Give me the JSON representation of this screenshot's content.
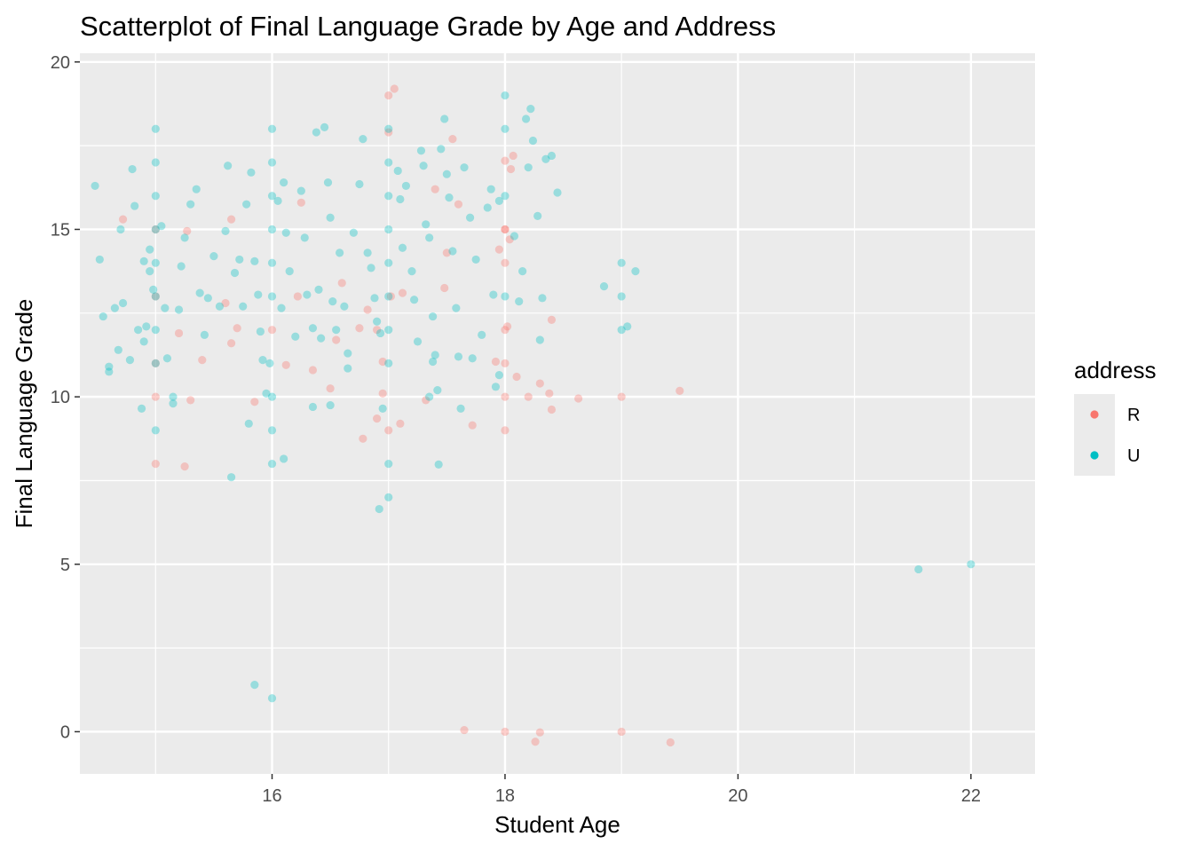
{
  "chart_data": {
    "type": "scatter",
    "title": "Scatterplot of Final Language Grade by Age and Address",
    "xlabel": "Student Age",
    "ylabel": "Final Language Grade",
    "xlim": [
      14.35,
      22.55
    ],
    "ylim": [
      -1.26,
      20.26
    ],
    "x_ticks": [
      16,
      18,
      20,
      22
    ],
    "y_ticks": [
      0,
      5,
      10,
      15,
      20
    ],
    "grid": true,
    "legend": {
      "title": "address",
      "placement": "right",
      "entries": [
        {
          "label": "R",
          "color": "#F8766D"
        },
        {
          "label": "U",
          "color": "#00BFC4"
        }
      ]
    },
    "series": [
      {
        "name": "R",
        "color": "#F8766D",
        "points": [
          [
            17,
            19
          ],
          [
            17.05,
            19.2
          ],
          [
            17,
            17.9
          ],
          [
            17.55,
            17.7
          ],
          [
            18,
            17.05
          ],
          [
            18.07,
            17.2
          ],
          [
            18.05,
            16.8
          ],
          [
            15,
            15
          ],
          [
            14.72,
            15.3
          ],
          [
            15.65,
            15.3
          ],
          [
            15.27,
            14.95
          ],
          [
            17.4,
            16.2
          ],
          [
            17.6,
            15.75
          ],
          [
            16.25,
            15.8
          ],
          [
            18,
            15
          ],
          [
            18.04,
            14.7
          ],
          [
            17.95,
            14.4
          ],
          [
            18,
            14
          ],
          [
            17.5,
            14.3
          ],
          [
            15,
            13
          ],
          [
            15.6,
            12.8
          ],
          [
            16.22,
            13
          ],
          [
            16.6,
            13.4
          ],
          [
            17.02,
            13
          ],
          [
            17.12,
            13.1
          ],
          [
            17.48,
            13.25
          ],
          [
            18.02,
            12.1
          ],
          [
            18.4,
            12.3
          ],
          [
            16,
            12
          ],
          [
            15.7,
            12.05
          ],
          [
            15.2,
            11.9
          ],
          [
            16.75,
            12.05
          ],
          [
            16.9,
            12
          ],
          [
            15,
            11
          ],
          [
            15.4,
            11.1
          ],
          [
            16.55,
            11.7
          ],
          [
            16.35,
            10.8
          ],
          [
            16.95,
            11.05
          ],
          [
            18,
            11
          ],
          [
            17.92,
            11.05
          ],
          [
            18.1,
            10.6
          ],
          [
            15,
            10
          ],
          [
            15.3,
            9.9
          ],
          [
            15.85,
            9.85
          ],
          [
            16.5,
            10.25
          ],
          [
            16.95,
            10.1
          ],
          [
            17.32,
            9.9
          ],
          [
            18,
            10
          ],
          [
            18.2,
            10
          ],
          [
            18.3,
            10.4
          ],
          [
            18.38,
            10.1
          ],
          [
            18.63,
            9.95
          ],
          [
            19,
            10
          ],
          [
            19.5,
            10.18
          ],
          [
            17,
            9
          ],
          [
            16.9,
            9.35
          ],
          [
            17.1,
            9.2
          ],
          [
            17.72,
            9.15
          ],
          [
            18,
            9
          ],
          [
            18.4,
            9.62
          ],
          [
            15,
            8
          ],
          [
            15.25,
            7.92
          ],
          [
            16.78,
            8.75
          ],
          [
            18,
            12
          ],
          [
            18,
            15
          ],
          [
            18,
            0
          ],
          [
            17.65,
            0.05
          ],
          [
            18.26,
            -0.3
          ],
          [
            18.3,
            -0.02
          ],
          [
            19,
            0
          ],
          [
            19.42,
            -0.32
          ],
          [
            15.65,
            11.6
          ],
          [
            16.12,
            10.95
          ],
          [
            16.82,
            12.6
          ]
        ]
      },
      {
        "name": "U",
        "color": "#00BFC4",
        "points": [
          [
            15,
            18
          ],
          [
            15,
            17
          ],
          [
            15,
            16
          ],
          [
            15,
            15
          ],
          [
            15,
            14
          ],
          [
            15,
            13
          ],
          [
            15,
            12
          ],
          [
            15,
            11
          ],
          [
            15,
            9
          ],
          [
            16,
            18
          ],
          [
            16,
            17
          ],
          [
            16,
            16
          ],
          [
            16,
            15
          ],
          [
            16,
            14
          ],
          [
            16,
            13
          ],
          [
            16,
            10
          ],
          [
            16,
            9
          ],
          [
            16,
            8
          ],
          [
            16,
            1
          ],
          [
            17,
            18
          ],
          [
            17,
            17
          ],
          [
            17,
            16
          ],
          [
            17,
            15
          ],
          [
            17,
            14
          ],
          [
            17,
            13
          ],
          [
            17,
            12
          ],
          [
            17,
            11
          ],
          [
            17,
            8
          ],
          [
            17,
            7
          ],
          [
            18,
            19
          ],
          [
            18,
            18
          ],
          [
            18,
            16
          ],
          [
            18,
            13
          ],
          [
            19,
            14
          ],
          [
            19,
            13
          ],
          [
            19,
            12
          ],
          [
            22,
            5
          ],
          [
            14.48,
            16.3
          ],
          [
            14.52,
            14.1
          ],
          [
            14.55,
            12.4
          ],
          [
            14.6,
            10.9
          ],
          [
            14.6,
            10.75
          ],
          [
            14.65,
            12.65
          ],
          [
            14.7,
            15
          ],
          [
            14.72,
            12.8
          ],
          [
            14.78,
            11.1
          ],
          [
            14.8,
            16.8
          ],
          [
            14.82,
            15.7
          ],
          [
            14.85,
            12
          ],
          [
            14.88,
            9.65
          ],
          [
            14.9,
            11.65
          ],
          [
            14.92,
            12.1
          ],
          [
            14.95,
            14.4
          ],
          [
            14.95,
            13.75
          ],
          [
            14.98,
            13.2
          ],
          [
            14.68,
            11.4
          ],
          [
            15.05,
            15.1
          ],
          [
            15.08,
            12.65
          ],
          [
            15.1,
            11.15
          ],
          [
            15.15,
            10
          ],
          [
            15.2,
            12.6
          ],
          [
            15.22,
            13.9
          ],
          [
            15.25,
            14.75
          ],
          [
            15.3,
            15.75
          ],
          [
            15.35,
            16.2
          ],
          [
            15.38,
            13.1
          ],
          [
            15.42,
            11.85
          ],
          [
            15.45,
            12.95
          ],
          [
            15.5,
            14.2
          ],
          [
            15.55,
            12.7
          ],
          [
            15.6,
            14.95
          ],
          [
            15.62,
            16.9
          ],
          [
            15.68,
            13.7
          ],
          [
            15.72,
            14.1
          ],
          [
            15.75,
            12.7
          ],
          [
            15.78,
            15.75
          ],
          [
            15.82,
            16.7
          ],
          [
            15.85,
            14.05
          ],
          [
            15.88,
            13.05
          ],
          [
            15.9,
            11.95
          ],
          [
            15.92,
            11.1
          ],
          [
            15.95,
            10.1
          ],
          [
            15.98,
            11
          ],
          [
            16.05,
            15.85
          ],
          [
            16.08,
            12.65
          ],
          [
            16.1,
            16.4
          ],
          [
            16.12,
            14.9
          ],
          [
            16.15,
            13.75
          ],
          [
            16.2,
            11.8
          ],
          [
            16.25,
            16.15
          ],
          [
            16.28,
            14.75
          ],
          [
            16.3,
            13.05
          ],
          [
            16.35,
            12.05
          ],
          [
            16.38,
            17.9
          ],
          [
            16.4,
            13.2
          ],
          [
            16.42,
            11.75
          ],
          [
            16.45,
            18.05
          ],
          [
            16.48,
            16.4
          ],
          [
            16.5,
            15.35
          ],
          [
            16.52,
            12.85
          ],
          [
            16.55,
            12
          ],
          [
            16.58,
            14.3
          ],
          [
            16.62,
            12.7
          ],
          [
            16.65,
            11.3
          ],
          [
            16.7,
            14.9
          ],
          [
            16.75,
            16.35
          ],
          [
            16.78,
            17.7
          ],
          [
            16.82,
            14.3
          ],
          [
            16.85,
            13.85
          ],
          [
            16.88,
            12.95
          ],
          [
            16.9,
            12.25
          ],
          [
            16.93,
            11.9
          ],
          [
            16.95,
            9.65
          ],
          [
            16.92,
            6.65
          ],
          [
            17.08,
            16.75
          ],
          [
            17.1,
            15.9
          ],
          [
            17.12,
            14.45
          ],
          [
            17.15,
            16.3
          ],
          [
            17.2,
            13.75
          ],
          [
            17.22,
            12.9
          ],
          [
            17.25,
            11.65
          ],
          [
            17.28,
            17.35
          ],
          [
            17.3,
            16.9
          ],
          [
            17.32,
            15.15
          ],
          [
            17.35,
            14.75
          ],
          [
            17.38,
            12.4
          ],
          [
            17.4,
            11.25
          ],
          [
            17.42,
            10.2
          ],
          [
            17.45,
            17.4
          ],
          [
            17.48,
            18.3
          ],
          [
            17.5,
            16.65
          ],
          [
            17.52,
            15.95
          ],
          [
            17.55,
            14.35
          ],
          [
            17.58,
            12.65
          ],
          [
            17.6,
            11.2
          ],
          [
            17.62,
            9.65
          ],
          [
            17.43,
            7.98
          ],
          [
            17.65,
            16.85
          ],
          [
            17.7,
            15.35
          ],
          [
            17.72,
            11.15
          ],
          [
            17.75,
            14.1
          ],
          [
            17.8,
            11.85
          ],
          [
            17.85,
            15.65
          ],
          [
            17.88,
            16.2
          ],
          [
            17.9,
            13.05
          ],
          [
            17.92,
            10.3
          ],
          [
            17.95,
            15.85
          ],
          [
            18.08,
            14.8
          ],
          [
            18.12,
            12.85
          ],
          [
            18.15,
            13.75
          ],
          [
            18.18,
            18.3
          ],
          [
            18.2,
            16.85
          ],
          [
            18.22,
            18.6
          ],
          [
            18.24,
            17.65
          ],
          [
            18.28,
            15.4
          ],
          [
            18.3,
            11.7
          ],
          [
            18.32,
            12.95
          ],
          [
            18.35,
            17.1
          ],
          [
            18.4,
            17.2
          ],
          [
            18.45,
            16.1
          ],
          [
            18.85,
            13.3
          ],
          [
            19.12,
            13.75
          ],
          [
            19.05,
            12.1
          ],
          [
            21.55,
            4.85
          ],
          [
            15.85,
            1.4
          ],
          [
            15.65,
            7.6
          ],
          [
            15.8,
            9.2
          ],
          [
            16.1,
            8.15
          ],
          [
            16.65,
            10.85
          ],
          [
            17.35,
            10
          ],
          [
            17.38,
            11.05
          ],
          [
            16.35,
            9.7
          ],
          [
            16.5,
            9.75
          ],
          [
            17.95,
            10.65
          ],
          [
            15.15,
            9.8
          ],
          [
            14.9,
            14.05
          ]
        ]
      }
    ]
  }
}
